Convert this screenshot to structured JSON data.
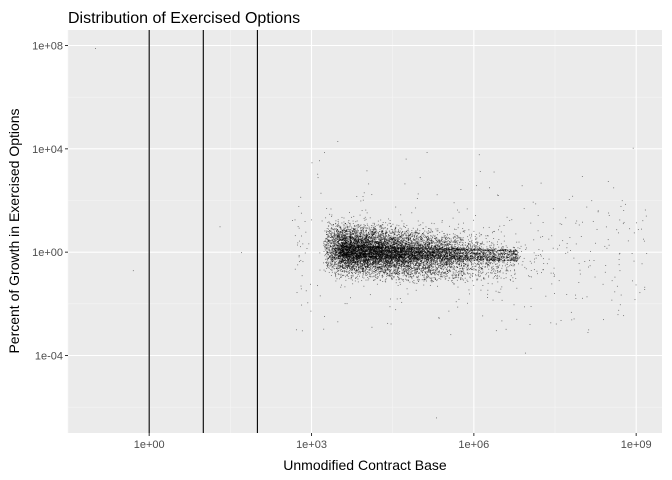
{
  "chart_data": {
    "type": "scatter",
    "title": "Distribution of Exercised Options",
    "xlabel": "Unmodified Contract Base",
    "ylabel": "Percent of Growth in Exercised Options",
    "x_scale": "log10",
    "y_scale": "log10",
    "xlim": [
      0.0316,
      3000000000.0
    ],
    "ylim": [
      1e-07,
      398000000.0
    ],
    "x_ticks": [
      {
        "value": 1,
        "label": "1e+00"
      },
      {
        "value": 1000,
        "label": "1e+03"
      },
      {
        "value": 1000000,
        "label": "1e+06"
      },
      {
        "value": 1000000000,
        "label": "1e+09"
      }
    ],
    "y_ticks": [
      {
        "value": 0.0001,
        "label": "1e-04"
      },
      {
        "value": 1,
        "label": "1e+00"
      },
      {
        "value": 10000,
        "label": "1e+04"
      },
      {
        "value": 100000000,
        "label": "1e+08"
      }
    ],
    "vertical_lines": [
      1,
      10,
      100
    ],
    "cluster": {
      "description_free": true,
      "x_range": [
        300,
        2000000000
      ],
      "y_center": 1,
      "dense_x_range": [
        3000,
        1000000
      ]
    },
    "outliers": [
      {
        "x": 0.1,
        "y": 80000000
      },
      {
        "x": 20,
        "y": 10
      },
      {
        "x": 100000,
        "y": 800
      },
      {
        "x": 3000,
        "y": 20000
      },
      {
        "x": 1000,
        "y": 3000
      },
      {
        "x": 8000,
        "y": 100
      },
      {
        "x": 0.5,
        "y": 0.2
      },
      {
        "x": 50,
        "y": 1
      },
      {
        "x": 200000,
        "y": 4e-07
      }
    ],
    "colors": {
      "panel": "#ebebeb",
      "grid_major": "#ffffff",
      "grid_minor": "#f5f5f5",
      "points": "#000000"
    },
    "grid": true,
    "legend": "none"
  }
}
